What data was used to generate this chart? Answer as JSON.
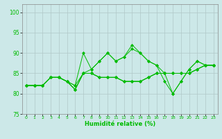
{
  "title": "",
  "xlabel": "Humidité relative (%)",
  "ylabel": "",
  "bg_color": "#cce8e8",
  "grid_color": "#b0c8c8",
  "line_color": "#00bb00",
  "xlim": [
    -0.5,
    23.5
  ],
  "ylim": [
    75,
    102
  ],
  "yticks": [
    75,
    80,
    85,
    90,
    95,
    100
  ],
  "xticks": [
    0,
    1,
    2,
    3,
    4,
    5,
    6,
    7,
    8,
    9,
    10,
    11,
    12,
    13,
    14,
    15,
    16,
    17,
    18,
    19,
    20,
    21,
    22,
    23
  ],
  "series": [
    [
      82,
      82,
      82,
      84,
      84,
      83,
      82,
      90,
      86,
      88,
      90,
      88,
      89,
      91,
      90,
      88,
      87,
      85,
      80,
      83,
      86,
      88,
      87,
      87
    ],
    [
      82,
      82,
      82,
      84,
      84,
      83,
      82,
      85,
      86,
      88,
      90,
      88,
      89,
      92,
      90,
      88,
      87,
      83,
      80,
      83,
      86,
      88,
      87,
      87
    ],
    [
      82,
      82,
      82,
      84,
      84,
      83,
      81,
      85,
      85,
      84,
      84,
      84,
      83,
      83,
      83,
      84,
      85,
      85,
      85,
      85,
      85,
      86,
      87,
      87
    ],
    [
      82,
      82,
      82,
      84,
      84,
      83,
      81,
      85,
      85,
      84,
      84,
      84,
      83,
      83,
      83,
      84,
      85,
      85,
      85,
      85,
      85,
      86,
      87,
      87
    ],
    [
      82,
      82,
      82,
      84,
      84,
      83,
      81,
      85,
      85,
      84,
      84,
      84,
      83,
      83,
      83,
      84,
      85,
      85,
      85,
      85,
      85,
      86,
      87,
      87
    ]
  ]
}
